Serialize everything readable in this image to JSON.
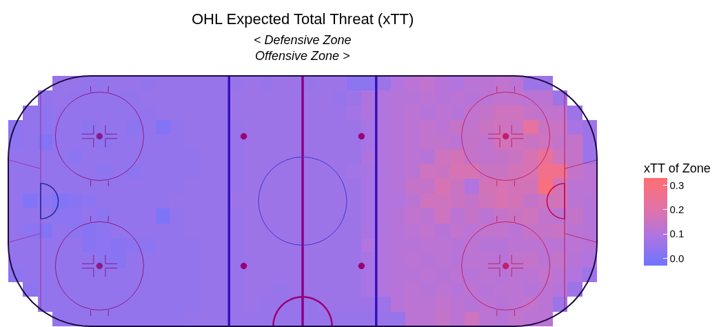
{
  "chart_data": {
    "type": "heatmap",
    "title": "OHL Expected Total Threat (xTT)",
    "subtitle": "< Defensive Zone\nOffensive Zone >",
    "clabel": "xTT of Zone",
    "categories": [
      null,
      null,
      null,
      null,
      null,
      null,
      null,
      null,
      null,
      null,
      null,
      null,
      null,
      null,
      null,
      null,
      null,
      null,
      null,
      null,
      null,
      null,
      null,
      null,
      null,
      null,
      null,
      null,
      null,
      null,
      null,
      null,
      null,
      null,
      null,
      null,
      null,
      null,
      null,
      null
    ],
    "y_categories": [
      null,
      null,
      null,
      null,
      null,
      null,
      null,
      null,
      null,
      null,
      null,
      null,
      null,
      null,
      null,
      null,
      null
    ],
    "cells": [
      [
        null,
        null,
        null,
        0.05,
        0.05,
        0.04,
        0.04,
        0.05,
        0.05,
        0.04,
        0.05,
        0.05,
        0.05,
        0.05,
        0.05,
        0.05,
        0.06,
        0.05,
        0.06,
        0.06,
        0.05,
        0.06,
        0.06,
        0.03,
        0.03,
        0.06,
        0.1,
        0.12,
        0.13,
        0.11,
        0.1,
        0.12,
        0.12,
        0.13,
        0.12,
        0.06,
        0.06,
        null,
        null,
        null
      ],
      [
        null,
        null,
        0.04,
        0.05,
        0.04,
        0.04,
        0.04,
        0.04,
        0.04,
        0.05,
        0.05,
        0.05,
        0.05,
        0.05,
        0.05,
        0.06,
        0.06,
        0.06,
        0.06,
        0.06,
        0.06,
        0.06,
        0.05,
        0.06,
        0.09,
        0.1,
        0.11,
        0.11,
        0.12,
        0.11,
        0.12,
        0.11,
        0.12,
        0.13,
        0.13,
        0.12,
        0.12,
        0.06,
        null,
        null
      ],
      [
        null,
        0.04,
        0.03,
        0.04,
        0.04,
        0.04,
        0.04,
        0.04,
        0.04,
        0.04,
        0.05,
        0.05,
        0.05,
        0.05,
        0.05,
        0.06,
        0.06,
        0.06,
        0.06,
        0.06,
        0.06,
        0.06,
        0.06,
        0.07,
        0.09,
        0.1,
        0.11,
        0.12,
        0.11,
        0.12,
        0.11,
        0.13,
        0.14,
        0.16,
        0.16,
        0.14,
        0.13,
        0.13,
        0.06,
        null
      ],
      [
        0.03,
        0.04,
        0.03,
        0.04,
        0.04,
        0.03,
        0.04,
        0.04,
        0.03,
        0.04,
        0.01,
        0.04,
        0.05,
        0.05,
        0.05,
        0.05,
        0.06,
        0.06,
        0.06,
        0.06,
        0.06,
        0.06,
        0.06,
        0.06,
        0.08,
        0.1,
        0.11,
        0.12,
        0.13,
        0.12,
        0.14,
        0.13,
        0.15,
        0.16,
        0.15,
        0.22,
        0.15,
        0.15,
        0.08,
        0.06
      ],
      [
        0.03,
        0.04,
        0.01,
        0.04,
        0.04,
        0.04,
        0.03,
        0.04,
        0.04,
        0.04,
        0.04,
        0.04,
        0.05,
        0.05,
        0.05,
        0.05,
        0.06,
        0.06,
        0.06,
        0.06,
        0.06,
        0.06,
        0.06,
        0.06,
        0.08,
        0.1,
        0.11,
        0.12,
        0.13,
        0.13,
        0.12,
        0.14,
        0.13,
        0.17,
        0.16,
        0.15,
        0.16,
        0.14,
        0.14,
        0.06
      ],
      [
        0.04,
        0.04,
        0.04,
        0.04,
        0.03,
        0.04,
        0.04,
        0.04,
        0.04,
        0.04,
        0.04,
        0.04,
        0.04,
        0.05,
        0.05,
        0.05,
        0.06,
        0.06,
        0.06,
        0.06,
        0.06,
        0.06,
        0.06,
        0.06,
        0.09,
        0.1,
        0.11,
        0.12,
        0.11,
        0.16,
        0.17,
        0.14,
        0.13,
        0.14,
        0.15,
        0.18,
        0.24,
        0.16,
        0.14,
        0.06
      ],
      [
        0.04,
        0.04,
        0.04,
        0.04,
        0.04,
        0.04,
        0.03,
        0.04,
        0.03,
        0.04,
        0.04,
        0.04,
        0.04,
        0.05,
        0.05,
        0.05,
        0.06,
        0.06,
        0.06,
        0.06,
        0.06,
        0.06,
        0.06,
        0.07,
        0.08,
        0.1,
        0.11,
        0.12,
        0.16,
        0.15,
        0.18,
        0.18,
        0.15,
        0.15,
        0.17,
        0.18,
        0.27,
        0.27,
        0.14,
        0.12
      ],
      [
        0.04,
        0.04,
        0.04,
        0.04,
        0.04,
        0.04,
        0.04,
        0.04,
        0.04,
        0.04,
        0.04,
        0.04,
        0.05,
        0.05,
        0.05,
        0.05,
        0.06,
        0.06,
        0.06,
        0.06,
        0.06,
        0.06,
        0.06,
        0.06,
        0.08,
        0.1,
        0.11,
        0.14,
        0.14,
        0.18,
        0.15,
        0.1,
        0.17,
        0.18,
        0.17,
        0.17,
        0.3,
        0.17,
        0.12,
        0.12
      ],
      [
        0.04,
        0.01,
        0.03,
        0.01,
        0.02,
        0.03,
        0.04,
        0.04,
        0.04,
        0.04,
        0.04,
        0.05,
        0.05,
        0.05,
        0.05,
        0.06,
        0.06,
        0.06,
        0.06,
        0.06,
        0.06,
        0.06,
        0.06,
        0.06,
        0.08,
        0.1,
        0.1,
        0.12,
        0.16,
        0.16,
        0.15,
        0.14,
        0.16,
        0.18,
        0.17,
        0.14,
        0.16,
        0.17,
        0.12,
        0.11
      ],
      [
        0.04,
        0.04,
        0.04,
        0.03,
        0.03,
        0.04,
        0.03,
        0.04,
        0.04,
        0.04,
        0.0,
        0.04,
        0.05,
        0.05,
        0.05,
        0.05,
        0.06,
        0.06,
        0.06,
        0.06,
        0.06,
        0.06,
        0.06,
        0.06,
        0.08,
        0.1,
        0.11,
        0.13,
        0.12,
        0.16,
        0.12,
        0.14,
        0.12,
        0.14,
        0.15,
        0.16,
        0.13,
        0.12,
        0.14,
        0.11
      ],
      [
        0.04,
        0.03,
        0.01,
        0.04,
        0.03,
        0.02,
        0.03,
        0.04,
        0.04,
        0.04,
        0.04,
        0.04,
        0.05,
        0.05,
        0.05,
        0.05,
        0.06,
        0.06,
        0.06,
        0.06,
        0.06,
        0.06,
        0.06,
        0.06,
        0.08,
        0.1,
        0.11,
        0.12,
        0.13,
        0.11,
        0.13,
        0.12,
        0.13,
        0.13,
        0.12,
        0.14,
        0.14,
        0.15,
        0.12,
        0.11
      ],
      [
        0.04,
        0.04,
        0.04,
        0.04,
        0.04,
        0.02,
        0.03,
        0.02,
        0.03,
        0.03,
        0.04,
        0.04,
        0.04,
        0.05,
        0.05,
        0.05,
        0.06,
        0.06,
        0.06,
        0.06,
        0.06,
        0.06,
        0.06,
        0.06,
        0.1,
        0.1,
        0.11,
        0.11,
        0.12,
        0.12,
        0.11,
        0.12,
        0.11,
        0.11,
        0.12,
        0.12,
        0.12,
        0.12,
        0.12,
        0.11
      ],
      [
        0.04,
        0.04,
        0.04,
        0.04,
        0.04,
        0.04,
        0.03,
        0.02,
        0.04,
        0.04,
        0.04,
        0.04,
        0.04,
        0.05,
        0.05,
        0.05,
        0.06,
        0.06,
        0.06,
        0.06,
        0.06,
        0.06,
        0.06,
        0.06,
        0.08,
        0.1,
        0.11,
        0.12,
        0.11,
        0.12,
        0.11,
        0.12,
        0.12,
        0.11,
        0.13,
        0.14,
        0.12,
        0.14,
        0.11,
        0.1
      ],
      [
        0.03,
        0.04,
        0.04,
        0.04,
        0.04,
        0.04,
        0.04,
        0.04,
        0.04,
        0.04,
        0.04,
        0.04,
        0.04,
        0.05,
        0.05,
        0.05,
        0.06,
        0.06,
        0.06,
        0.06,
        0.06,
        0.06,
        0.06,
        0.06,
        0.08,
        0.1,
        0.11,
        0.11,
        0.12,
        0.11,
        0.12,
        0.11,
        0.12,
        0.11,
        0.12,
        0.12,
        0.13,
        0.12,
        0.1,
        0.06
      ],
      [
        null,
        0.03,
        0.04,
        0.04,
        0.04,
        0.04,
        0.04,
        0.04,
        0.04,
        0.04,
        0.04,
        0.04,
        0.04,
        0.05,
        0.05,
        0.05,
        0.06,
        0.06,
        0.05,
        0.06,
        0.06,
        0.06,
        0.06,
        0.06,
        0.08,
        0.1,
        0.11,
        0.12,
        0.11,
        0.12,
        0.11,
        0.12,
        0.11,
        0.12,
        0.12,
        0.11,
        0.12,
        0.11,
        0.06,
        null
      ],
      [
        null,
        null,
        0.04,
        0.04,
        0.04,
        0.04,
        0.04,
        0.04,
        0.04,
        0.04,
        0.04,
        0.04,
        0.04,
        0.05,
        0.05,
        0.05,
        0.06,
        0.05,
        0.05,
        0.05,
        0.05,
        0.06,
        0.06,
        0.06,
        0.06,
        0.06,
        0.11,
        0.12,
        0.12,
        0.13,
        0.12,
        0.11,
        0.12,
        0.11,
        0.12,
        0.13,
        0.12,
        0.06,
        null,
        null
      ],
      [
        null,
        null,
        null,
        0.04,
        0.04,
        0.04,
        0.04,
        0.04,
        0.04,
        0.04,
        0.04,
        0.04,
        0.05,
        0.05,
        0.05,
        0.05,
        0.05,
        0.05,
        0.05,
        0.05,
        0.05,
        0.05,
        0.05,
        0.05,
        0.05,
        0.05,
        0.05,
        0.12,
        0.12,
        0.14,
        0.12,
        0.16,
        0.12,
        0.11,
        0.13,
        0.12,
        0.12,
        null,
        null,
        null
      ]
    ],
    "clim": [
      -0.03,
      0.33
    ],
    "cticks": [
      {
        "value": 0,
        "label": "0.0"
      },
      0.1,
      0.2,
      0.3
    ]
  }
}
